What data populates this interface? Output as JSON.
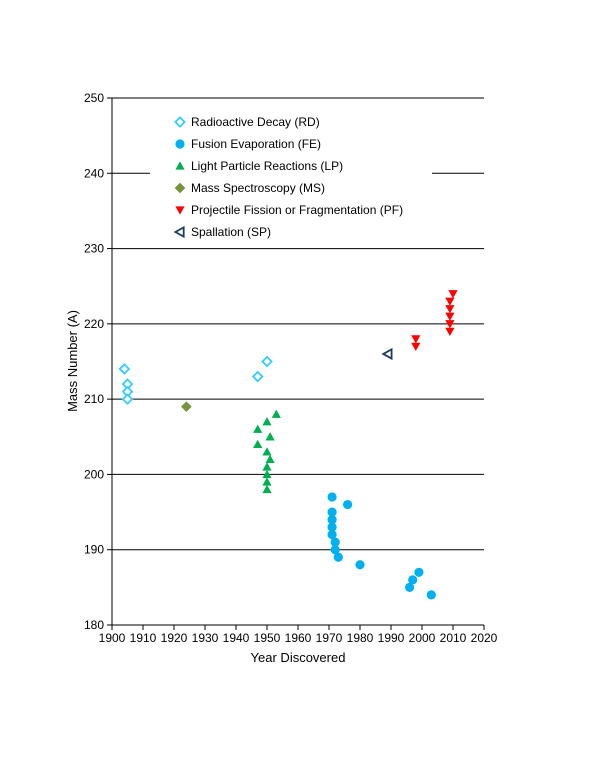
{
  "chart_data": {
    "type": "scatter",
    "xlabel": "Year Discovered",
    "ylabel": "Mass Number (A)",
    "xlim": [
      1900,
      2020
    ],
    "ylim": [
      180,
      250
    ],
    "x_ticks": [
      1900,
      1910,
      1920,
      1930,
      1940,
      1950,
      1960,
      1970,
      1980,
      1990,
      2000,
      2010,
      2020
    ],
    "y_ticks": [
      180,
      190,
      200,
      210,
      220,
      230,
      240,
      250
    ],
    "grid": "horizontal",
    "legend_position": "top-left",
    "series": [
      {
        "name": "Radioactive Decay (RD)",
        "marker": "diamond-open",
        "color": "#33ccff",
        "points": [
          [
            1904,
            214
          ],
          [
            1905,
            212
          ],
          [
            1905,
            211
          ],
          [
            1905,
            210
          ],
          [
            1947,
            213
          ],
          [
            1950,
            215
          ]
        ]
      },
      {
        "name": "Fusion Evaporation (FE)",
        "marker": "circle",
        "color": "#00b0f0",
        "points": [
          [
            1971,
            197
          ],
          [
            1971,
            195
          ],
          [
            1971,
            194
          ],
          [
            1971,
            193
          ],
          [
            1971,
            192
          ],
          [
            1972,
            191
          ],
          [
            1972,
            190
          ],
          [
            1973,
            189
          ],
          [
            1976,
            196
          ],
          [
            1980,
            188
          ],
          [
            1996,
            185
          ],
          [
            1997,
            186
          ],
          [
            1999,
            187
          ],
          [
            2003,
            184
          ]
        ]
      },
      {
        "name": "Light Particle Reactions (LP)",
        "marker": "triangle-up",
        "color": "#00b050",
        "points": [
          [
            1947,
            206
          ],
          [
            1947,
            204
          ],
          [
            1950,
            207
          ],
          [
            1950,
            203
          ],
          [
            1950,
            201
          ],
          [
            1950,
            200
          ],
          [
            1950,
            199
          ],
          [
            1950,
            198
          ],
          [
            1951,
            205
          ],
          [
            1951,
            202
          ],
          [
            1953,
            208
          ]
        ]
      },
      {
        "name": "Mass Spectroscopy (MS)",
        "marker": "diamond",
        "color": "#77933c",
        "points": [
          [
            1924,
            209
          ]
        ]
      },
      {
        "name": "Projectile Fission or Fragmentation (PF)",
        "marker": "triangle-down",
        "color": "#ff0000",
        "points": [
          [
            1998,
            218
          ],
          [
            1998,
            217
          ],
          [
            2009,
            223
          ],
          [
            2009,
            222
          ],
          [
            2009,
            221
          ],
          [
            2009,
            220
          ],
          [
            2009,
            219
          ],
          [
            2010,
            224
          ]
        ]
      },
      {
        "name": "Spallation (SP)",
        "marker": "triangle-left-open",
        "color": "#1f3864",
        "points": [
          [
            1989,
            216
          ]
        ]
      }
    ]
  }
}
